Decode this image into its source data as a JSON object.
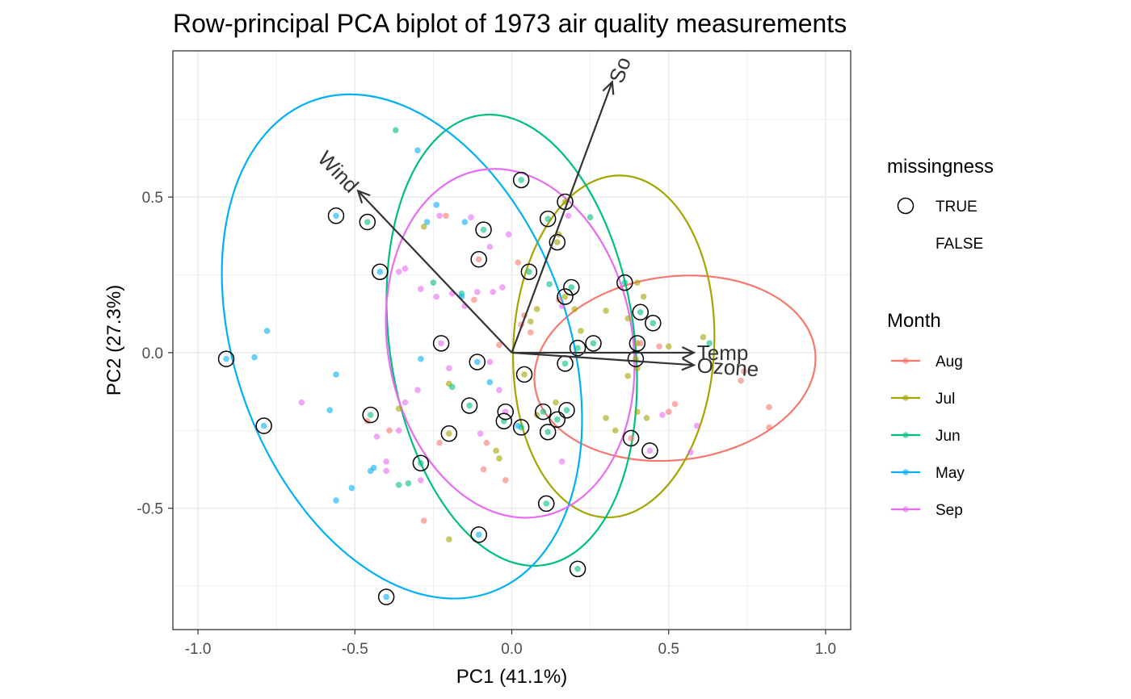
{
  "chart_data": {
    "type": "scatter",
    "title": "Row-principal PCA biplot of 1973 air quality measurements",
    "xlabel": "PC1 (41.1%)",
    "ylabel": "PC2 (27.3%)",
    "xlim": [
      -1.08,
      1.08
    ],
    "ylim": [
      -0.89,
      0.97
    ],
    "xticks": [
      -1.0,
      -0.5,
      0.0,
      0.5,
      1.0
    ],
    "xtick_labels": [
      "-1.0",
      "-0.5",
      "0.0",
      "0.5",
      "1.0"
    ],
    "yticks": [
      -0.5,
      0.0,
      0.5
    ],
    "ytick_labels": [
      "-0.5",
      "0.0",
      "0.5"
    ],
    "grid": true,
    "colors": {
      "Aug": "#F8766D",
      "Jul": "#A3A500",
      "Jun": "#00BF7D",
      "May": "#00B0F6",
      "Sep": "#E76BF3"
    },
    "legend_missingness": {
      "title": "missingness",
      "entries": [
        "TRUE",
        "FALSE"
      ]
    },
    "legend_month": {
      "title": "Month",
      "entries": [
        "Aug",
        "Jul",
        "Jun",
        "May",
        "Sep"
      ]
    },
    "ellipses": [
      {
        "month": "Aug",
        "cx": 0.52,
        "cy": -0.05,
        "rx": 0.45,
        "ry": 0.295,
        "angle": -7
      },
      {
        "month": "Jul",
        "cx": 0.325,
        "cy": 0.02,
        "rx": 0.32,
        "ry": 0.55,
        "angle": 3
      },
      {
        "month": "Jun",
        "cx": 0.0,
        "cy": 0.04,
        "rx": 0.39,
        "ry": 0.73,
        "angle": -8
      },
      {
        "month": "May",
        "cx": -0.35,
        "cy": 0.02,
        "rx": 0.53,
        "ry": 0.84,
        "angle": -20
      },
      {
        "month": "Sep",
        "cx": -0.005,
        "cy": 0.03,
        "rx": 0.39,
        "ry": 0.565,
        "angle": -10
      }
    ],
    "arrows": [
      {
        "label": "Solar.R",
        "x": 0.32,
        "y": 0.87
      },
      {
        "label": "Wind",
        "x": -0.49,
        "y": 0.52
      },
      {
        "label": "Temp",
        "x": 0.58,
        "y": 0.0
      },
      {
        "label": "Ozone",
        "x": 0.58,
        "y": -0.04
      }
    ],
    "arrow_label_texts": {
      "Solar.R": "So",
      "Wind": "Wind",
      "Temp": "Temp",
      "Ozone": "Ozone"
    },
    "points": [
      {
        "x": 0.03,
        "y": 0.555,
        "month": "Jun",
        "missing": true
      },
      {
        "x": 0.17,
        "y": 0.485,
        "month": "Jul",
        "missing": true
      },
      {
        "x": -0.56,
        "y": 0.44,
        "month": "May",
        "missing": true
      },
      {
        "x": -0.46,
        "y": 0.42,
        "month": "Jun",
        "missing": true
      },
      {
        "x": 0.115,
        "y": 0.43,
        "month": "Jun",
        "missing": true
      },
      {
        "x": -0.09,
        "y": 0.395,
        "month": "Jun",
        "missing": true
      },
      {
        "x": 0.145,
        "y": 0.355,
        "month": "Jul",
        "missing": true
      },
      {
        "x": -0.105,
        "y": 0.3,
        "month": "Aug",
        "missing": true
      },
      {
        "x": -0.42,
        "y": 0.26,
        "month": "May",
        "missing": true
      },
      {
        "x": 0.055,
        "y": 0.26,
        "month": "Jun",
        "missing": true
      },
      {
        "x": 0.36,
        "y": 0.225,
        "month": "Jun",
        "missing": true
      },
      {
        "x": 0.19,
        "y": 0.21,
        "month": "Jun",
        "missing": true
      },
      {
        "x": 0.17,
        "y": 0.18,
        "month": "Jul",
        "missing": true
      },
      {
        "x": 0.41,
        "y": 0.13,
        "month": "Jun",
        "missing": true
      },
      {
        "x": 0.45,
        "y": 0.095,
        "month": "Jun",
        "missing": true
      },
      {
        "x": 0.4,
        "y": 0.03,
        "month": "Jul",
        "missing": true
      },
      {
        "x": 0.26,
        "y": 0.03,
        "month": "Jun",
        "missing": true
      },
      {
        "x": 0.21,
        "y": 0.015,
        "month": "Jun",
        "missing": true
      },
      {
        "x": -0.225,
        "y": 0.03,
        "month": "Sep",
        "missing": true
      },
      {
        "x": -0.91,
        "y": -0.02,
        "month": "May",
        "missing": true
      },
      {
        "x": 0.395,
        "y": -0.02,
        "month": "Jul",
        "missing": true
      },
      {
        "x": -0.11,
        "y": -0.03,
        "month": "May",
        "missing": true
      },
      {
        "x": 0.17,
        "y": -0.035,
        "month": "Jun",
        "missing": true
      },
      {
        "x": 0.04,
        "y": -0.07,
        "month": "Jul",
        "missing": true
      },
      {
        "x": -0.79,
        "y": -0.235,
        "month": "May",
        "missing": true
      },
      {
        "x": -0.45,
        "y": -0.2,
        "month": "Jun",
        "missing": true
      },
      {
        "x": -0.135,
        "y": -0.17,
        "month": "Jun",
        "missing": true
      },
      {
        "x": -0.02,
        "y": -0.19,
        "month": "Sep",
        "missing": true
      },
      {
        "x": -0.025,
        "y": -0.22,
        "month": "Jun",
        "missing": true
      },
      {
        "x": 0.1,
        "y": -0.19,
        "month": "Jun",
        "missing": true
      },
      {
        "x": 0.175,
        "y": -0.185,
        "month": "Jun",
        "missing": true
      },
      {
        "x": 0.145,
        "y": -0.215,
        "month": "Jun",
        "missing": true
      },
      {
        "x": 0.03,
        "y": -0.24,
        "month": "Jun",
        "missing": true
      },
      {
        "x": 0.115,
        "y": -0.255,
        "month": "Jun",
        "missing": true
      },
      {
        "x": -0.2,
        "y": -0.26,
        "month": "Jul",
        "missing": true
      },
      {
        "x": 0.38,
        "y": -0.275,
        "month": "Aug",
        "missing": true
      },
      {
        "x": 0.44,
        "y": -0.315,
        "month": "Sep",
        "missing": true
      },
      {
        "x": -0.29,
        "y": -0.355,
        "month": "Jun",
        "missing": true
      },
      {
        "x": 0.11,
        "y": -0.485,
        "month": "Jun",
        "missing": true
      },
      {
        "x": -0.105,
        "y": -0.585,
        "month": "May",
        "missing": true
      },
      {
        "x": 0.21,
        "y": -0.695,
        "month": "Jun",
        "missing": true
      },
      {
        "x": -0.4,
        "y": -0.785,
        "month": "May",
        "missing": true
      },
      {
        "x": -0.37,
        "y": 0.715,
        "month": "Jun",
        "missing": false
      },
      {
        "x": -0.3,
        "y": 0.65,
        "month": "May",
        "missing": false
      },
      {
        "x": 0.25,
        "y": 0.435,
        "month": "Jun",
        "missing": false
      },
      {
        "x": -0.24,
        "y": 0.475,
        "month": "May",
        "missing": false
      },
      {
        "x": -0.23,
        "y": 0.44,
        "month": "Sep",
        "missing": false
      },
      {
        "x": -0.21,
        "y": 0.44,
        "month": "Aug",
        "missing": false
      },
      {
        "x": -0.15,
        "y": 0.42,
        "month": "May",
        "missing": false
      },
      {
        "x": -0.27,
        "y": 0.42,
        "month": "May",
        "missing": false
      },
      {
        "x": -0.28,
        "y": 0.405,
        "month": "Jul",
        "missing": false
      },
      {
        "x": -0.13,
        "y": 0.435,
        "month": "Sep",
        "missing": false
      },
      {
        "x": 0.18,
        "y": 0.44,
        "month": "Sep",
        "missing": false
      },
      {
        "x": 0.15,
        "y": 0.38,
        "month": "Jul",
        "missing": false
      },
      {
        "x": -0.01,
        "y": 0.38,
        "month": "Sep",
        "missing": false
      },
      {
        "x": -0.07,
        "y": 0.34,
        "month": "Sep",
        "missing": false
      },
      {
        "x": 0.02,
        "y": 0.29,
        "month": "Aug",
        "missing": false
      },
      {
        "x": -0.34,
        "y": 0.27,
        "month": "Sep",
        "missing": false
      },
      {
        "x": -0.36,
        "y": 0.26,
        "month": "Sep",
        "missing": false
      },
      {
        "x": -0.25,
        "y": 0.225,
        "month": "Jun",
        "missing": false
      },
      {
        "x": -0.29,
        "y": 0.205,
        "month": "Sep",
        "missing": false
      },
      {
        "x": -0.19,
        "y": 0.19,
        "month": "Sep",
        "missing": false
      },
      {
        "x": -0.16,
        "y": 0.19,
        "month": "Jun",
        "missing": false
      },
      {
        "x": -0.11,
        "y": 0.195,
        "month": "Sep",
        "missing": false
      },
      {
        "x": -0.06,
        "y": 0.195,
        "month": "Sep",
        "missing": false
      },
      {
        "x": -0.12,
        "y": 0.17,
        "month": "Aug",
        "missing": false
      },
      {
        "x": -0.16,
        "y": 0.18,
        "month": "May",
        "missing": false
      },
      {
        "x": -0.03,
        "y": 0.21,
        "month": "Sep",
        "missing": false
      },
      {
        "x": -0.24,
        "y": 0.18,
        "month": "Sep",
        "missing": false
      },
      {
        "x": -0.15,
        "y": 0.15,
        "month": "Sep",
        "missing": false
      },
      {
        "x": 0.12,
        "y": 0.22,
        "month": "Jun",
        "missing": false
      },
      {
        "x": 0.15,
        "y": 0.17,
        "month": "Aug",
        "missing": false
      },
      {
        "x": 0.16,
        "y": 0.15,
        "month": "Sep",
        "missing": false
      },
      {
        "x": 0.2,
        "y": 0.14,
        "month": "Jul",
        "missing": false
      },
      {
        "x": 0.08,
        "y": 0.14,
        "month": "Jul",
        "missing": false
      },
      {
        "x": 0.04,
        "y": 0.12,
        "month": "Aug",
        "missing": false
      },
      {
        "x": 0.06,
        "y": 0.1,
        "month": "Jul",
        "missing": false
      },
      {
        "x": 0.03,
        "y": 0.09,
        "month": "Aug",
        "missing": false
      },
      {
        "x": 0.06,
        "y": 0.065,
        "month": "Aug",
        "missing": false
      },
      {
        "x": 0.22,
        "y": 0.07,
        "month": "Jul",
        "missing": false
      },
      {
        "x": 0.3,
        "y": 0.135,
        "month": "Jul",
        "missing": false
      },
      {
        "x": 0.37,
        "y": 0.11,
        "month": "Jul",
        "missing": false
      },
      {
        "x": 0.4,
        "y": 0.225,
        "month": "Jul",
        "missing": false
      },
      {
        "x": 0.42,
        "y": 0.18,
        "month": "Jul",
        "missing": false
      },
      {
        "x": 0.5,
        "y": 0.02,
        "month": "Jul",
        "missing": false
      },
      {
        "x": 0.61,
        "y": 0.05,
        "month": "Jul",
        "missing": false
      },
      {
        "x": 0.63,
        "y": 0.03,
        "month": "Jun",
        "missing": false
      },
      {
        "x": 0.74,
        "y": -0.06,
        "month": "Aug",
        "missing": false
      },
      {
        "x": 0.73,
        "y": -0.09,
        "month": "Aug",
        "missing": false
      },
      {
        "x": 0.41,
        "y": 0.03,
        "month": "Aug",
        "missing": false
      },
      {
        "x": 0.4,
        "y": -0.05,
        "month": "Jul",
        "missing": false
      },
      {
        "x": -0.04,
        "y": 0.025,
        "month": "Aug",
        "missing": false
      },
      {
        "x": -0.29,
        "y": -0.02,
        "month": "May",
        "missing": false
      },
      {
        "x": -0.2,
        "y": -0.05,
        "month": "Sep",
        "missing": false
      },
      {
        "x": -0.07,
        "y": -0.03,
        "month": "Sep",
        "missing": false
      },
      {
        "x": -0.2,
        "y": -0.1,
        "month": "Jul",
        "missing": false
      },
      {
        "x": -0.07,
        "y": -0.095,
        "month": "May",
        "missing": false
      },
      {
        "x": -0.04,
        "y": -0.12,
        "month": "Sep",
        "missing": false
      },
      {
        "x": -0.19,
        "y": -0.11,
        "month": "Jun",
        "missing": false
      },
      {
        "x": -0.3,
        "y": -0.12,
        "month": "Sep",
        "missing": false
      },
      {
        "x": -0.56,
        "y": -0.07,
        "month": "May",
        "missing": false
      },
      {
        "x": -0.82,
        "y": -0.015,
        "month": "May",
        "missing": false
      },
      {
        "x": -0.78,
        "y": 0.07,
        "month": "May",
        "missing": false
      },
      {
        "x": -0.67,
        "y": -0.16,
        "month": "Sep",
        "missing": false
      },
      {
        "x": -0.58,
        "y": -0.185,
        "month": "May",
        "missing": false
      },
      {
        "x": -0.56,
        "y": -0.475,
        "month": "May",
        "missing": false
      },
      {
        "x": -0.51,
        "y": -0.435,
        "month": "May",
        "missing": false
      },
      {
        "x": -0.46,
        "y": -0.22,
        "month": "Aug",
        "missing": false
      },
      {
        "x": -0.36,
        "y": -0.18,
        "month": "Jul",
        "missing": false
      },
      {
        "x": -0.34,
        "y": -0.16,
        "month": "Sep",
        "missing": false
      },
      {
        "x": -0.36,
        "y": -0.25,
        "month": "Sep",
        "missing": false
      },
      {
        "x": -0.39,
        "y": -0.25,
        "month": "Aug",
        "missing": false
      },
      {
        "x": -0.4,
        "y": -0.35,
        "month": "Sep",
        "missing": false
      },
      {
        "x": -0.4,
        "y": -0.38,
        "month": "Sep",
        "missing": false
      },
      {
        "x": -0.44,
        "y": -0.37,
        "month": "May",
        "missing": false
      },
      {
        "x": -0.45,
        "y": -0.38,
        "month": "May",
        "missing": false
      },
      {
        "x": -0.43,
        "y": -0.27,
        "month": "Sep",
        "missing": false
      },
      {
        "x": -0.29,
        "y": -0.41,
        "month": "Sep",
        "missing": false
      },
      {
        "x": -0.36,
        "y": -0.425,
        "month": "Jun",
        "missing": false
      },
      {
        "x": -0.33,
        "y": -0.42,
        "month": "Jun",
        "missing": false
      },
      {
        "x": -0.23,
        "y": -0.29,
        "month": "Aug",
        "missing": false
      },
      {
        "x": -0.08,
        "y": -0.29,
        "month": "Aug",
        "missing": false
      },
      {
        "x": -0.1,
        "y": -0.26,
        "month": "Sep",
        "missing": false
      },
      {
        "x": -0.05,
        "y": -0.315,
        "month": "Jul",
        "missing": false
      },
      {
        "x": -0.09,
        "y": -0.375,
        "month": "Aug",
        "missing": false
      },
      {
        "x": -0.04,
        "y": -0.34,
        "month": "Jul",
        "missing": false
      },
      {
        "x": -0.02,
        "y": -0.41,
        "month": "Aug",
        "missing": false
      },
      {
        "x": 0.02,
        "y": -0.235,
        "month": "May",
        "missing": false
      },
      {
        "x": 0.08,
        "y": -0.2,
        "month": "Jul",
        "missing": false
      },
      {
        "x": 0.14,
        "y": -0.16,
        "month": "Jul",
        "missing": false
      },
      {
        "x": 0.16,
        "y": -0.35,
        "month": "Sep",
        "missing": false
      },
      {
        "x": -0.2,
        "y": -0.6,
        "month": "Jul",
        "missing": false
      },
      {
        "x": -0.28,
        "y": -0.54,
        "month": "Aug",
        "missing": false
      },
      {
        "x": 0.3,
        "y": -0.21,
        "month": "Jul",
        "missing": false
      },
      {
        "x": 0.33,
        "y": -0.25,
        "month": "Jul",
        "missing": false
      },
      {
        "x": 0.4,
        "y": -0.19,
        "month": "Jul",
        "missing": false
      },
      {
        "x": 0.43,
        "y": -0.21,
        "month": "Jul",
        "missing": false
      },
      {
        "x": 0.48,
        "y": -0.2,
        "month": "Sep",
        "missing": false
      },
      {
        "x": 0.5,
        "y": -0.19,
        "month": "Aug",
        "missing": false
      },
      {
        "x": 0.52,
        "y": -0.165,
        "month": "Aug",
        "missing": false
      },
      {
        "x": 0.57,
        "y": -0.32,
        "month": "Sep",
        "missing": false
      },
      {
        "x": 0.59,
        "y": -0.235,
        "month": "Sep",
        "missing": false
      },
      {
        "x": 0.82,
        "y": -0.175,
        "month": "Aug",
        "missing": false
      },
      {
        "x": 0.82,
        "y": -0.24,
        "month": "Aug",
        "missing": false
      },
      {
        "x": 0.47,
        "y": 0.02,
        "month": "Aug",
        "missing": false
      },
      {
        "x": 0.37,
        "y": -0.075,
        "month": "Jul",
        "missing": false
      }
    ]
  }
}
